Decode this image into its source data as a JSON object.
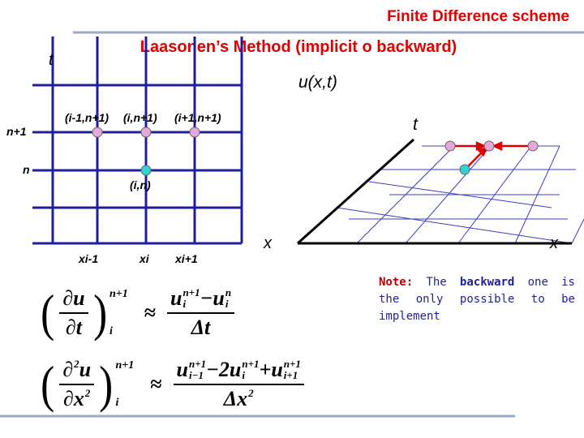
{
  "header": {
    "title": "Finite Difference scheme",
    "subtitle": "Laasonen’s Method (implicit o backward)"
  },
  "grid": {
    "t_label": "t",
    "row_labels": [
      "n+1",
      "n"
    ],
    "node_labels": [
      "(i-1,n+1)",
      "(i,n+1)",
      "(i+1,n+1)",
      "(i,n)"
    ],
    "col_labels": [
      "xi-1",
      "xi",
      "xi+1"
    ],
    "x_label": "x"
  },
  "surface": {
    "u_label": "u(x,t)",
    "t_label": "t",
    "x_label": "x"
  },
  "note": {
    "label": "Note:",
    "pre": "The",
    "emph": "backward",
    "post": "one is the only possible to be implement"
  },
  "equations": [
    {
      "lhs_num": [
        {
          "t": "∂u"
        }
      ],
      "lhs_den": [
        {
          "t": "∂t"
        }
      ],
      "sup": "n+1",
      "sub": "i",
      "approx": "≈",
      "rhs_num": [
        {
          "t": "u",
          "sup": "n+1",
          "sub": "i"
        },
        {
          "t": "−"
        },
        {
          "t": "u",
          "sup": "n",
          "sub": "i"
        }
      ],
      "rhs_den": [
        {
          "t": "Δt"
        }
      ]
    },
    {
      "lhs_num": [
        {
          "t": "∂",
          "sup": "2"
        },
        {
          "t": "u"
        }
      ],
      "lhs_den": [
        {
          "t": "∂x",
          "sup": "2"
        }
      ],
      "sup": "n+1",
      "sub": "i",
      "approx": "≈",
      "rhs_num": [
        {
          "t": "u",
          "sup": "n+1",
          "sub": "i−1"
        },
        {
          "t": "−"
        },
        {
          "t": "2u",
          "sup": "n+1",
          "sub": "i"
        },
        {
          "t": "+"
        },
        {
          "t": "u",
          "sup": "n+1",
          "sub": "i+1"
        }
      ],
      "rhs_den": [
        {
          "t": "Δx",
          "sup": "2"
        }
      ]
    }
  ]
}
